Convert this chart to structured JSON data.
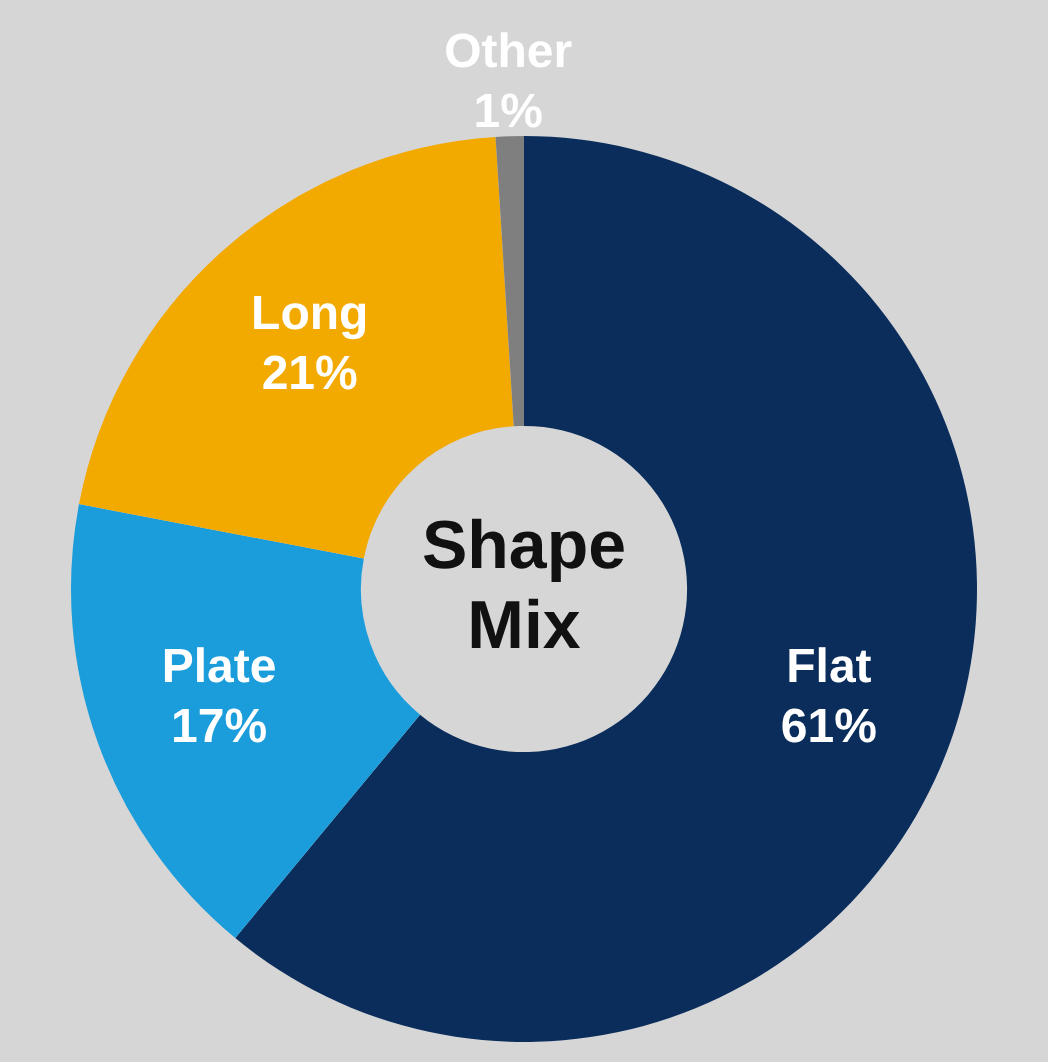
{
  "chart_data": {
    "type": "donut",
    "title": "Shape Mix",
    "categories": [
      "Flat",
      "Plate",
      "Long",
      "Other"
    ],
    "values": [
      61,
      17,
      21,
      1
    ],
    "value_labels": [
      "61%",
      "17%",
      "21%",
      "1%"
    ],
    "colors": [
      "#0b2d5b",
      "#1b9ddb",
      "#f2a900",
      "#7f7f7f"
    ],
    "legend": false
  }
}
